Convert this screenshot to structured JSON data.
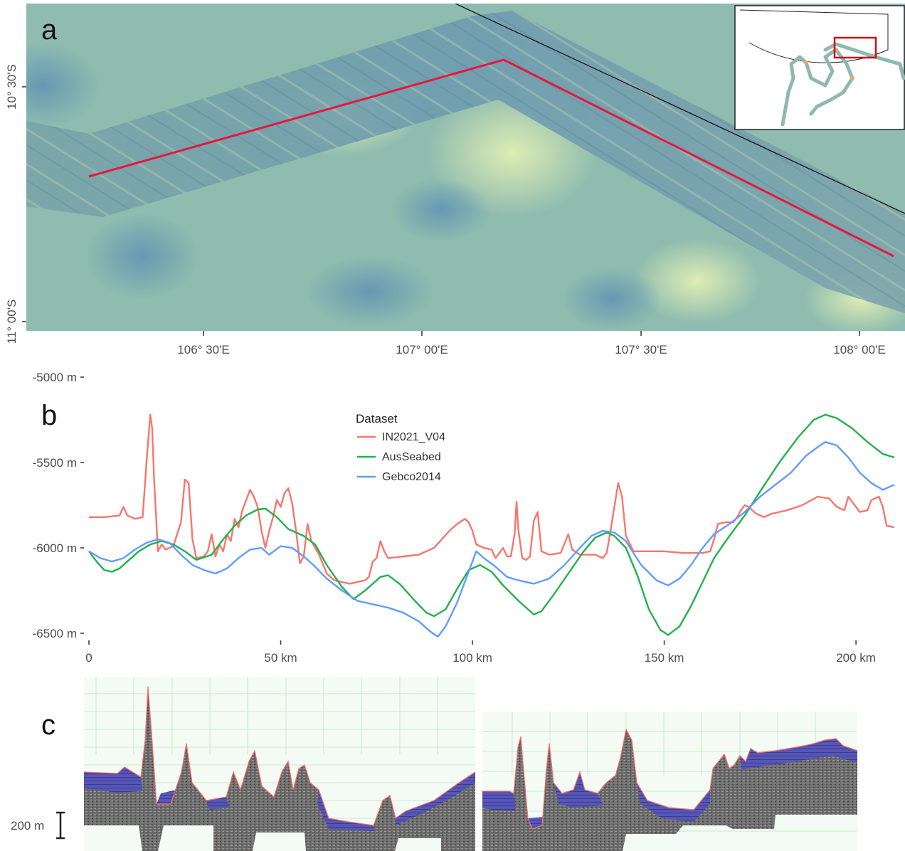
{
  "panels": {
    "a": {
      "label": "a",
      "lat_ticks": [
        "10° 30'S",
        "11° 00'S"
      ],
      "lon_ticks": [
        "106° 30'E",
        "107° 00'E",
        "107° 30'E",
        "108° 00'E"
      ],
      "route_color": "#e8163e"
    },
    "b": {
      "label": "b"
    },
    "c": {
      "label": "c",
      "scale_bar_label": "200 m"
    }
  },
  "chart_data": {
    "type": "line",
    "x_unit": "km",
    "y_unit": "m",
    "xlim": [
      0,
      210
    ],
    "ylim": [
      -6520,
      -5000
    ],
    "x_ticks": [
      0,
      50,
      100,
      150,
      200
    ],
    "x_tick_labels": [
      "0",
      "50 km",
      "100 km",
      "150 km",
      "200 km"
    ],
    "y_ticks": [
      -5000,
      -5500,
      -6000,
      -6500
    ],
    "y_tick_labels": [
      "-5000 m",
      "-5500 m",
      "-6000 m",
      "-6500 m"
    ],
    "grid": false,
    "legend": {
      "title": "Dataset",
      "position": "top-center"
    },
    "series": [
      {
        "name": "IN2021_V04",
        "color": "#f8766d",
        "points": [
          [
            0,
            -5820
          ],
          [
            4,
            -5820
          ],
          [
            8,
            -5810
          ],
          [
            9,
            -5760
          ],
          [
            10,
            -5810
          ],
          [
            12,
            -5830
          ],
          [
            14,
            -5820
          ],
          [
            15,
            -5500
          ],
          [
            16,
            -5220
          ],
          [
            16.5,
            -5300
          ],
          [
            17,
            -5600
          ],
          [
            18,
            -6020
          ],
          [
            19,
            -5980
          ],
          [
            20,
            -6010
          ],
          [
            22,
            -5990
          ],
          [
            24,
            -5850
          ],
          [
            25,
            -5600
          ],
          [
            26,
            -5620
          ],
          [
            27,
            -5950
          ],
          [
            28,
            -6060
          ],
          [
            30,
            -6050
          ],
          [
            31,
            -6020
          ],
          [
            32,
            -5920
          ],
          [
            33,
            -6050
          ],
          [
            34,
            -5980
          ],
          [
            35,
            -6020
          ],
          [
            36,
            -5920
          ],
          [
            37,
            -5960
          ],
          [
            38,
            -5830
          ],
          [
            39,
            -5880
          ],
          [
            40,
            -5780
          ],
          [
            41,
            -5720
          ],
          [
            42,
            -5660
          ],
          [
            43,
            -5700
          ],
          [
            44,
            -5760
          ],
          [
            45,
            -5900
          ],
          [
            46,
            -6000
          ],
          [
            47,
            -5900
          ],
          [
            48,
            -5820
          ],
          [
            49,
            -5720
          ],
          [
            50,
            -5760
          ],
          [
            51,
            -5680
          ],
          [
            52,
            -5650
          ],
          [
            53,
            -5740
          ],
          [
            54,
            -5900
          ],
          [
            55,
            -6090
          ],
          [
            56,
            -6050
          ],
          [
            57,
            -5860
          ],
          [
            58,
            -5960
          ],
          [
            60,
            -6040
          ],
          [
            62,
            -6150
          ],
          [
            64,
            -6190
          ],
          [
            66,
            -6200
          ],
          [
            68,
            -6210
          ],
          [
            70,
            -6200
          ],
          [
            72,
            -6190
          ],
          [
            73,
            -6170
          ],
          [
            74,
            -6080
          ],
          [
            75,
            -6060
          ],
          [
            76,
            -5960
          ],
          [
            77,
            -6020
          ],
          [
            78,
            -6060
          ],
          [
            82,
            -6050
          ],
          [
            86,
            -6040
          ],
          [
            90,
            -6000
          ],
          [
            92,
            -5950
          ],
          [
            94,
            -5900
          ],
          [
            96,
            -5860
          ],
          [
            98,
            -5830
          ],
          [
            99,
            -5850
          ],
          [
            100,
            -5900
          ],
          [
            101,
            -5980
          ],
          [
            103,
            -6000
          ],
          [
            105,
            -6010
          ],
          [
            106,
            -6060
          ],
          [
            108,
            -6000
          ],
          [
            109,
            -6050
          ],
          [
            110,
            -6050
          ],
          [
            111,
            -5920
          ],
          [
            111.5,
            -5730
          ],
          [
            112,
            -5900
          ],
          [
            113,
            -6060
          ],
          [
            114,
            -6070
          ],
          [
            115,
            -6050
          ],
          [
            116,
            -5840
          ],
          [
            117,
            -5790
          ],
          [
            118,
            -6020
          ],
          [
            120,
            -6040
          ],
          [
            123,
            -6030
          ],
          [
            125,
            -5920
          ],
          [
            126,
            -6010
          ],
          [
            128,
            -6040
          ],
          [
            132,
            -6040
          ],
          [
            134,
            -6060
          ],
          [
            135,
            -6030
          ],
          [
            136,
            -5900
          ],
          [
            137,
            -5760
          ],
          [
            138,
            -5620
          ],
          [
            139,
            -5700
          ],
          [
            140,
            -5930
          ],
          [
            142,
            -6020
          ],
          [
            146,
            -6020
          ],
          [
            150,
            -6020
          ],
          [
            155,
            -6030
          ],
          [
            160,
            -6030
          ],
          [
            162,
            -6020
          ],
          [
            163,
            -5950
          ],
          [
            164,
            -5860
          ],
          [
            166,
            -5850
          ],
          [
            168,
            -5850
          ],
          [
            169,
            -5820
          ],
          [
            170,
            -5780
          ],
          [
            171,
            -5750
          ],
          [
            172,
            -5760
          ],
          [
            174,
            -5800
          ],
          [
            176,
            -5820
          ],
          [
            178,
            -5800
          ],
          [
            182,
            -5780
          ],
          [
            186,
            -5750
          ],
          [
            190,
            -5700
          ],
          [
            193,
            -5710
          ],
          [
            195,
            -5760
          ],
          [
            197,
            -5780
          ],
          [
            198,
            -5700
          ],
          [
            199,
            -5730
          ],
          [
            201,
            -5790
          ],
          [
            203,
            -5780
          ],
          [
            204,
            -5720
          ],
          [
            206,
            -5700
          ],
          [
            207,
            -5760
          ],
          [
            208,
            -5870
          ],
          [
            210,
            -5880
          ]
        ]
      },
      {
        "name": "AusSeabed",
        "color": "#22b14c",
        "points": [
          [
            0,
            -6020
          ],
          [
            2,
            -6080
          ],
          [
            4,
            -6130
          ],
          [
            6,
            -6140
          ],
          [
            8,
            -6120
          ],
          [
            10,
            -6080
          ],
          [
            13,
            -6020
          ],
          [
            16,
            -5980
          ],
          [
            19,
            -5960
          ],
          [
            22,
            -5980
          ],
          [
            25,
            -6020
          ],
          [
            28,
            -6070
          ],
          [
            32,
            -6040
          ],
          [
            35,
            -5950
          ],
          [
            38,
            -5870
          ],
          [
            41,
            -5810
          ],
          [
            44,
            -5775
          ],
          [
            46,
            -5770
          ],
          [
            49,
            -5820
          ],
          [
            52,
            -5890
          ],
          [
            56,
            -5930
          ],
          [
            59,
            -5980
          ],
          [
            62,
            -6100
          ],
          [
            66,
            -6230
          ],
          [
            69,
            -6300
          ],
          [
            72,
            -6250
          ],
          [
            76,
            -6170
          ],
          [
            78,
            -6160
          ],
          [
            81,
            -6210
          ],
          [
            85,
            -6310
          ],
          [
            88,
            -6380
          ],
          [
            90,
            -6400
          ],
          [
            93,
            -6360
          ],
          [
            96,
            -6240
          ],
          [
            99,
            -6130
          ],
          [
            102,
            -6100
          ],
          [
            105,
            -6140
          ],
          [
            108,
            -6220
          ],
          [
            112,
            -6310
          ],
          [
            116,
            -6390
          ],
          [
            118,
            -6370
          ],
          [
            121,
            -6280
          ],
          [
            125,
            -6150
          ],
          [
            129,
            -6020
          ],
          [
            132,
            -5940
          ],
          [
            135,
            -5910
          ],
          [
            137,
            -5930
          ],
          [
            140,
            -6000
          ],
          [
            143,
            -6160
          ],
          [
            146,
            -6360
          ],
          [
            149,
            -6480
          ],
          [
            151,
            -6510
          ],
          [
            154,
            -6460
          ],
          [
            157,
            -6340
          ],
          [
            160,
            -6200
          ],
          [
            163,
            -6060
          ],
          [
            167,
            -5930
          ],
          [
            171,
            -5810
          ],
          [
            175,
            -5670
          ],
          [
            180,
            -5500
          ],
          [
            185,
            -5350
          ],
          [
            189,
            -5250
          ],
          [
            192,
            -5220
          ],
          [
            195,
            -5240
          ],
          [
            199,
            -5300
          ],
          [
            203,
            -5380
          ],
          [
            207,
            -5450
          ],
          [
            210,
            -5470
          ]
        ]
      },
      {
        "name": "Gebco2014",
        "color": "#619cff",
        "points": [
          [
            0,
            -6020
          ],
          [
            3,
            -6060
          ],
          [
            6,
            -6080
          ],
          [
            9,
            -6060
          ],
          [
            12,
            -6010
          ],
          [
            15,
            -5970
          ],
          [
            18,
            -5950
          ],
          [
            21,
            -5970
          ],
          [
            24,
            -6040
          ],
          [
            27,
            -6100
          ],
          [
            30,
            -6130
          ],
          [
            33,
            -6150
          ],
          [
            36,
            -6120
          ],
          [
            39,
            -6060
          ],
          [
            42,
            -6010
          ],
          [
            45,
            -6000
          ],
          [
            47,
            -6040
          ],
          [
            50,
            -5990
          ],
          [
            53,
            -6000
          ],
          [
            56,
            -6050
          ],
          [
            59,
            -6110
          ],
          [
            62,
            -6180
          ],
          [
            66,
            -6250
          ],
          [
            70,
            -6310
          ],
          [
            74,
            -6330
          ],
          [
            78,
            -6350
          ],
          [
            82,
            -6380
          ],
          [
            86,
            -6430
          ],
          [
            89,
            -6490
          ],
          [
            91,
            -6520
          ],
          [
            93,
            -6460
          ],
          [
            96,
            -6320
          ],
          [
            99,
            -6140
          ],
          [
            101,
            -6020
          ],
          [
            103,
            -6060
          ],
          [
            106,
            -6110
          ],
          [
            109,
            -6170
          ],
          [
            112,
            -6190
          ],
          [
            116,
            -6210
          ],
          [
            120,
            -6180
          ],
          [
            124,
            -6100
          ],
          [
            128,
            -6000
          ],
          [
            131,
            -5930
          ],
          [
            134,
            -5900
          ],
          [
            137,
            -5910
          ],
          [
            140,
            -5960
          ],
          [
            144,
            -6100
          ],
          [
            148,
            -6190
          ],
          [
            151,
            -6220
          ],
          [
            154,
            -6180
          ],
          [
            157,
            -6100
          ],
          [
            160,
            -6000
          ],
          [
            163,
            -5920
          ],
          [
            167,
            -5860
          ],
          [
            171,
            -5790
          ],
          [
            175,
            -5700
          ],
          [
            179,
            -5630
          ],
          [
            183,
            -5560
          ],
          [
            187,
            -5460
          ],
          [
            190,
            -5410
          ],
          [
            192,
            -5380
          ],
          [
            195,
            -5400
          ],
          [
            198,
            -5470
          ],
          [
            201,
            -5560
          ],
          [
            204,
            -5620
          ],
          [
            207,
            -5660
          ],
          [
            210,
            -5630
          ]
        ]
      }
    ]
  }
}
